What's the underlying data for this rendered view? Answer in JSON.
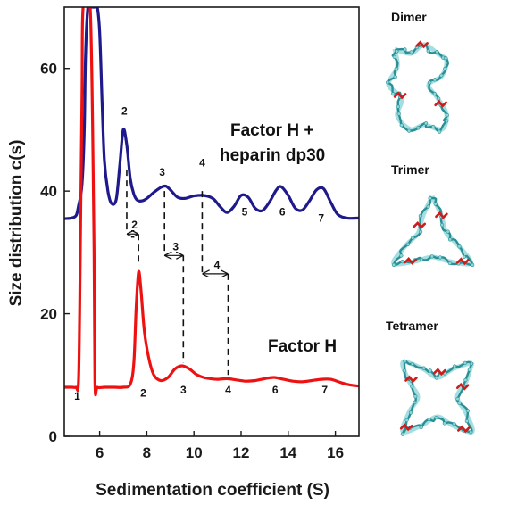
{
  "chart_data": {
    "type": "line",
    "xlabel": "Sedimentation coefficient (S)",
    "ylabel": "Size distribution c(s)",
    "xlim": [
      4.5,
      17
    ],
    "ylim": [
      0,
      70
    ],
    "xticks": [
      6,
      8,
      10,
      12,
      14,
      16
    ],
    "yticks": [
      0,
      20,
      40,
      60
    ],
    "grid": false,
    "series": [
      {
        "name": "Factor H + heparin dp30",
        "color": "#1f1a8c",
        "label_lines": [
          "Factor H +",
          "heparin dp30"
        ],
        "x": [
          4.5,
          4.8,
          5.0,
          5.1,
          5.25,
          5.35,
          5.4,
          5.5,
          5.6,
          5.7,
          5.8,
          5.9,
          6.0,
          6.1,
          6.2,
          6.35,
          6.5,
          6.7,
          6.85,
          7.0,
          7.15,
          7.3,
          7.45,
          7.6,
          7.8,
          8.0,
          8.3,
          8.6,
          8.8,
          9.0,
          9.3,
          9.6,
          10.0,
          10.4,
          10.8,
          11.1,
          11.4,
          11.7,
          12.0,
          12.3,
          12.6,
          12.9,
          13.2,
          13.5,
          13.7,
          14.0,
          14.3,
          14.6,
          14.9,
          15.2,
          15.5,
          15.8,
          16.1,
          16.5,
          17.0
        ],
        "y": [
          35.5,
          35.6,
          36.0,
          37.5,
          41.0,
          50.0,
          62.0,
          70,
          70,
          70,
          70,
          70,
          66,
          55,
          45,
          40,
          38.0,
          38.6,
          44.0,
          50.0,
          47.5,
          42.0,
          39.5,
          38.5,
          38.4,
          38.8,
          39.8,
          40.6,
          40.8,
          40.2,
          39.0,
          38.8,
          39.2,
          39.3,
          38.8,
          37.5,
          36.5,
          37.5,
          39.3,
          39.0,
          37.2,
          36.8,
          38.2,
          40.2,
          40.7,
          39.3,
          37.2,
          36.9,
          38.4,
          40.2,
          40.4,
          38.2,
          36.2,
          35.6,
          35.6
        ]
      },
      {
        "name": "Factor H",
        "color": "#ee1111",
        "label_lines": [
          "Factor H"
        ],
        "x": [
          4.5,
          4.8,
          5.0,
          5.1,
          5.15,
          5.25,
          5.3,
          5.6,
          5.75,
          5.8,
          5.9,
          6.2,
          6.6,
          7.0,
          7.3,
          7.45,
          7.55,
          7.65,
          7.75,
          7.9,
          8.1,
          8.3,
          8.6,
          8.9,
          9.2,
          9.5,
          9.8,
          10.1,
          10.4,
          10.7,
          11.0,
          11.4,
          11.8,
          12.2,
          12.6,
          13.0,
          13.4,
          13.8,
          14.2,
          14.6,
          15.0,
          15.4,
          15.8,
          16.2,
          16.6,
          17.0
        ],
        "y": [
          8,
          8,
          8,
          8.5,
          20,
          55,
          70,
          70,
          35,
          9,
          8,
          8,
          8,
          8,
          8.5,
          12,
          21,
          26.8,
          24,
          17,
          12.5,
          10,
          9.1,
          9.6,
          11.0,
          11.5,
          11.0,
          10.1,
          9.6,
          9.4,
          9.3,
          9.4,
          9.2,
          9.0,
          9.1,
          9.4,
          9.6,
          9.3,
          9.0,
          8.9,
          9.1,
          9.3,
          9.3,
          8.8,
          8.4,
          8.2
        ]
      }
    ],
    "peak_labels": {
      "upper": [
        {
          "text": "2",
          "x": 7.05,
          "y": 52.5
        },
        {
          "text": "3",
          "x": 8.65,
          "y": 42.5
        },
        {
          "text": "4",
          "x": 10.35,
          "y": 44.0
        },
        {
          "text": "5",
          "x": 12.15,
          "y": 36.0
        },
        {
          "text": "6",
          "x": 13.75,
          "y": 36.0
        },
        {
          "text": "7",
          "x": 15.4,
          "y": 35.0
        }
      ],
      "lower": [
        {
          "text": "1",
          "x": 5.05,
          "y": 6.0
        },
        {
          "text": "2",
          "x": 7.85,
          "y": 6.5
        },
        {
          "text": "3",
          "x": 9.55,
          "y": 7.0
        },
        {
          "text": "4",
          "x": 11.45,
          "y": 7.0
        },
        {
          "text": "6",
          "x": 13.45,
          "y": 7.0
        },
        {
          "text": "7",
          "x": 15.55,
          "y": 7.0
        }
      ]
    },
    "shift_markers": [
      {
        "text": "2",
        "x_upper": 7.15,
        "x_lower": 7.65,
        "y_top": 43.5,
        "y_bottom": 28.0,
        "y_arrow": 33.0
      },
      {
        "text": "3",
        "x_upper": 8.75,
        "x_lower": 9.55,
        "y_top": 40.0,
        "y_bottom": 12.0,
        "y_arrow": 29.5
      },
      {
        "text": "4",
        "x_upper": 10.35,
        "x_lower": 11.45,
        "y_top": 40.0,
        "y_bottom": 10.0,
        "y_arrow": 26.5
      }
    ],
    "side_panels": [
      {
        "title": "Dimer",
        "shape": "dimer"
      },
      {
        "title": "Trimer",
        "shape": "trimer"
      },
      {
        "title": "Tetramer",
        "shape": "tetramer"
      }
    ],
    "colors": {
      "chain": "#2a8f95",
      "chain_light": "#8fd6d8",
      "site": "#d21a1a",
      "axis": "#1a1a1a"
    }
  }
}
